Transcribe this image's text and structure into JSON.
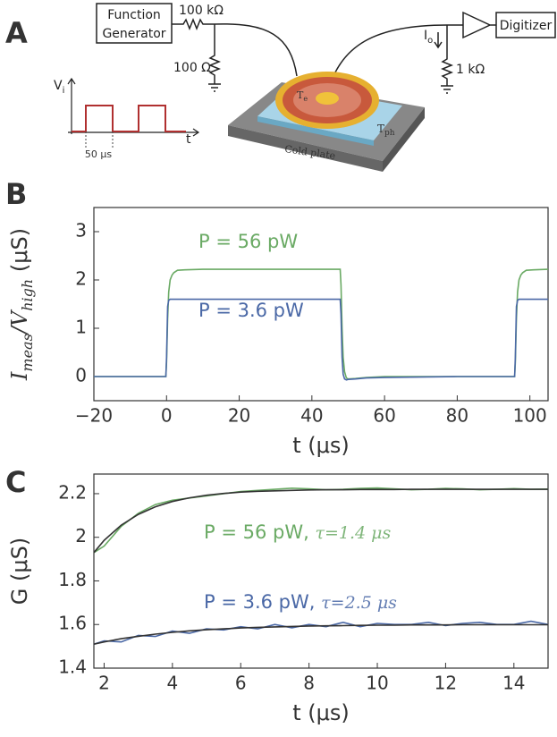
{
  "diagram": {
    "panel": "A",
    "source": [
      "Function",
      "Generator"
    ],
    "series_resistor": "100 kΩ",
    "shunt_resistor": "100 Ω",
    "digitizer": "Digitizer",
    "current": {
      "main": "I",
      "sub": "o"
    },
    "load_resistor": "1 kΩ",
    "pulse_ylabel": {
      "main": "V",
      "sub": "i"
    },
    "pulse_xlabel": "t",
    "pulse_width": "50 μs",
    "electron_temp": {
      "main": "T",
      "sub": "e"
    },
    "phonon_temp": {
      "main": "T",
      "sub": "ph"
    },
    "plate": "Cold plate"
  },
  "chart_data": [
    {
      "type": "line",
      "panel": "B",
      "xlabel": "t (μs)",
      "ylabel": [
        "I",
        "meas",
        "/V",
        "high",
        " (μS)"
      ],
      "x": [
        -20,
        -0.2,
        0,
        0.3,
        0.6,
        1,
        1.5,
        2,
        3,
        5,
        10,
        20,
        30,
        40,
        47.8,
        48,
        48.3,
        48.6,
        49,
        49.5,
        50,
        52,
        55,
        60,
        80,
        95.8,
        96,
        96.3,
        96.6,
        97,
        97.5,
        98,
        99,
        101,
        105
      ],
      "series": [
        {
          "name": "P = 56 pW",
          "color": "#6aaa64",
          "values": [
            0,
            0,
            0.3,
            1.2,
            1.75,
            2.0,
            2.1,
            2.15,
            2.2,
            2.21,
            2.22,
            2.22,
            2.22,
            2.22,
            2.22,
            1.9,
            1.0,
            0.4,
            0.1,
            -0.03,
            -0.05,
            -0.04,
            -0.02,
            0,
            0,
            0,
            0.3,
            1.2,
            1.75,
            2.0,
            2.1,
            2.15,
            2.2,
            2.21,
            2.22
          ]
        },
        {
          "name": "P = 3.6 pW",
          "color": "#4a68a6",
          "values": [
            0,
            0,
            0.4,
            1.45,
            1.58,
            1.6,
            1.6,
            1.6,
            1.6,
            1.6,
            1.6,
            1.6,
            1.6,
            1.6,
            1.6,
            1.3,
            0.4,
            0.05,
            -0.05,
            -0.07,
            -0.06,
            -0.05,
            -0.03,
            -0.02,
            0,
            0,
            0.4,
            1.45,
            1.58,
            1.6,
            1.6,
            1.6,
            1.6,
            1.6,
            1.6
          ]
        }
      ],
      "xlim": [
        -20,
        105
      ],
      "ylim": [
        -0.5,
        3.5
      ],
      "xticks": [
        {
          "value": -20,
          "label": "−20"
        },
        0,
        20,
        40,
        60,
        80,
        100
      ],
      "yticks": [
        0,
        1,
        2,
        3
      ]
    },
    {
      "type": "line",
      "panel": "C",
      "xlabel": "t (μs)",
      "ylabel": [
        "G (μS)"
      ],
      "x": [
        1.7,
        2,
        2.5,
        3,
        3.5,
        4,
        4.5,
        5,
        5.5,
        6,
        6.5,
        7,
        7.5,
        8,
        8.5,
        9,
        9.5,
        10,
        10.5,
        11,
        11.5,
        12,
        12.5,
        13,
        13.5,
        14,
        14.5,
        15
      ],
      "series": [
        {
          "color": "#6aaa64",
          "values": [
            1.93,
            1.96,
            2.05,
            2.11,
            2.15,
            2.17,
            2.18,
            2.19,
            2.2,
            2.21,
            2.215,
            2.22,
            2.225,
            2.222,
            2.218,
            2.22,
            2.224,
            2.226,
            2.222,
            2.218,
            2.22,
            2.224,
            2.222,
            2.218,
            2.22,
            2.223,
            2.22,
            2.221
          ]
        },
        {
          "color": "#333333",
          "values": [
            1.93,
            1.986,
            2.056,
            2.105,
            2.14,
            2.164,
            2.181,
            2.193,
            2.201,
            2.207,
            2.211,
            2.213,
            2.215,
            2.217,
            2.218,
            2.218,
            2.219,
            2.219,
            2.219,
            2.22,
            2.22,
            2.22,
            2.22,
            2.22,
            2.22,
            2.22,
            2.22,
            2.22
          ]
        },
        {
          "color": "#4a68a6",
          "values": [
            1.51,
            1.525,
            1.52,
            1.55,
            1.545,
            1.57,
            1.56,
            1.58,
            1.575,
            1.59,
            1.58,
            1.6,
            1.585,
            1.6,
            1.59,
            1.61,
            1.59,
            1.605,
            1.6,
            1.6,
            1.61,
            1.595,
            1.605,
            1.61,
            1.6,
            1.6,
            1.615,
            1.6
          ]
        },
        {
          "color": "#333333",
          "values": [
            1.51,
            1.52,
            1.535,
            1.546,
            1.556,
            1.564,
            1.571,
            1.576,
            1.58,
            1.584,
            1.587,
            1.589,
            1.591,
            1.593,
            1.594,
            1.595,
            1.596,
            1.597,
            1.597,
            1.598,
            1.598,
            1.598,
            1.599,
            1.599,
            1.599,
            1.599,
            1.599,
            1.599
          ]
        }
      ],
      "annotations": [
        {
          "text": "P = 56 pW, ",
          "fit": "τ=1.4 μs",
          "color": "#6aaa64"
        },
        {
          "text": "P = 3.6 pW, ",
          "fit": "τ=2.5 μs",
          "color": "#4a68a6"
        }
      ],
      "xlim": [
        1.7,
        15
      ],
      "ylim": [
        1.4,
        2.29
      ],
      "xticks": [
        2,
        4,
        6,
        8,
        10,
        12,
        14
      ],
      "yticks": [
        1.4,
        1.6,
        1.8,
        2.0,
        2.2
      ]
    }
  ]
}
